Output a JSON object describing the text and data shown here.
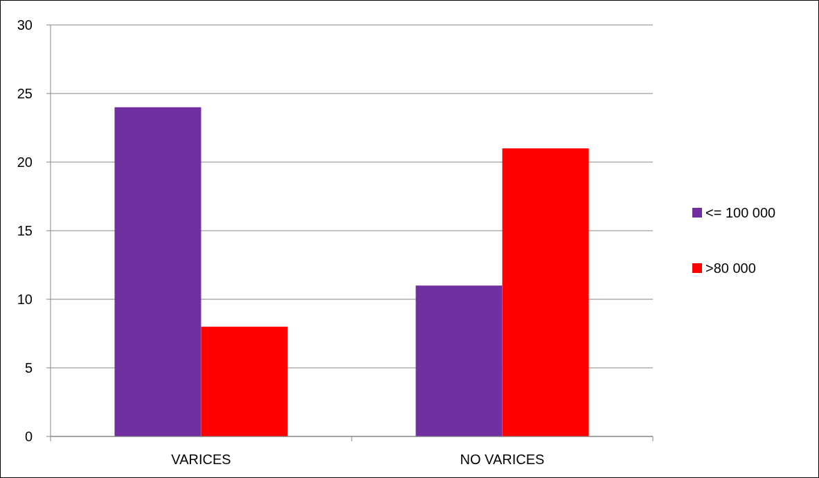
{
  "chart_data": {
    "type": "bar",
    "categories": [
      "VARICES",
      "NO VARICES"
    ],
    "series": [
      {
        "name": "<= 100 000",
        "color": "#7030a0",
        "values": [
          24,
          11
        ]
      },
      {
        "name": ">80 000",
        "color": "#ff0000",
        "values": [
          8,
          21
        ]
      }
    ],
    "ylim": [
      0,
      30
    ],
    "yticks": [
      0,
      5,
      10,
      15,
      20,
      25,
      30
    ],
    "grid": "y",
    "legend": "right"
  }
}
